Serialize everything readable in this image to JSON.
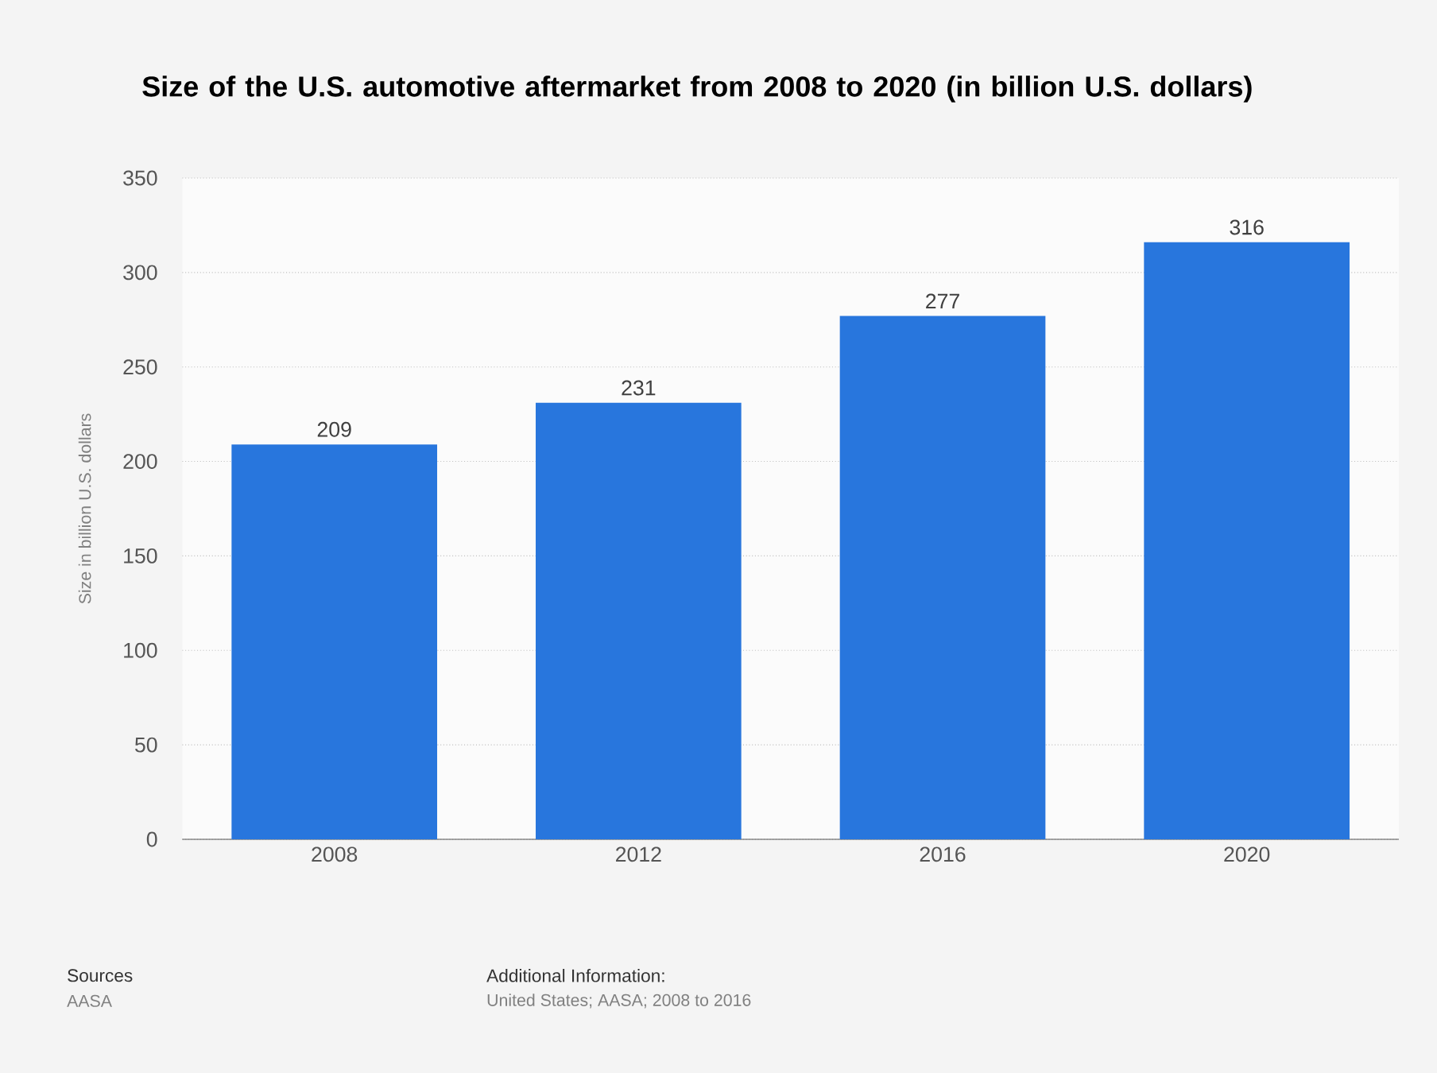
{
  "chart_data": {
    "type": "bar",
    "title": "Size of the U.S. automotive aftermarket from 2008 to 2020 (in billion U.S. dollars)",
    "ylabel": "Size in billion U.S. dollars",
    "categories": [
      "2008",
      "2012",
      "2016",
      "2020"
    ],
    "values": [
      209,
      231,
      277,
      316
    ],
    "color": "#2876dd",
    "ylim": [
      0,
      350
    ],
    "yticks": [
      0,
      50,
      100,
      150,
      200,
      250,
      300,
      350
    ],
    "grid": "y",
    "data_labels": true,
    "annotations": [
      "Sources",
      "AASA",
      "Additional Information:",
      "United States; AASA; 2008 to 2016"
    ]
  }
}
